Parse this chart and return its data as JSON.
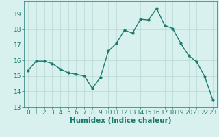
{
  "x": [
    0,
    1,
    2,
    3,
    4,
    5,
    6,
    7,
    8,
    9,
    10,
    11,
    12,
    13,
    14,
    15,
    16,
    17,
    18,
    19,
    20,
    21,
    22,
    23
  ],
  "y": [
    15.35,
    15.95,
    15.95,
    15.8,
    15.45,
    15.2,
    15.1,
    15.0,
    14.2,
    14.9,
    16.6,
    17.1,
    17.95,
    17.75,
    18.65,
    18.6,
    19.35,
    18.25,
    18.05,
    17.1,
    16.3,
    15.9,
    14.95,
    13.45
  ],
  "line_color": "#1a7a6e",
  "marker": "o",
  "marker_size": 2.0,
  "line_width": 1.0,
  "bg_color": "#d8f0ee",
  "grid_color": "#b8d8d4",
  "tick_color": "#1a7a6e",
  "xlabel": "Humidex (Indice chaleur)",
  "xlabel_fontsize": 7.5,
  "xlabel_color": "#1a7a6e",
  "ylim": [
    13,
    19.8
  ],
  "xlim": [
    -0.5,
    23.5
  ],
  "yticks": [
    13,
    14,
    15,
    16,
    17,
    18,
    19
  ],
  "xticks": [
    0,
    1,
    2,
    3,
    4,
    5,
    6,
    7,
    8,
    9,
    10,
    11,
    12,
    13,
    14,
    15,
    16,
    17,
    18,
    19,
    20,
    21,
    22,
    23
  ],
  "tick_fontsize": 6.5
}
